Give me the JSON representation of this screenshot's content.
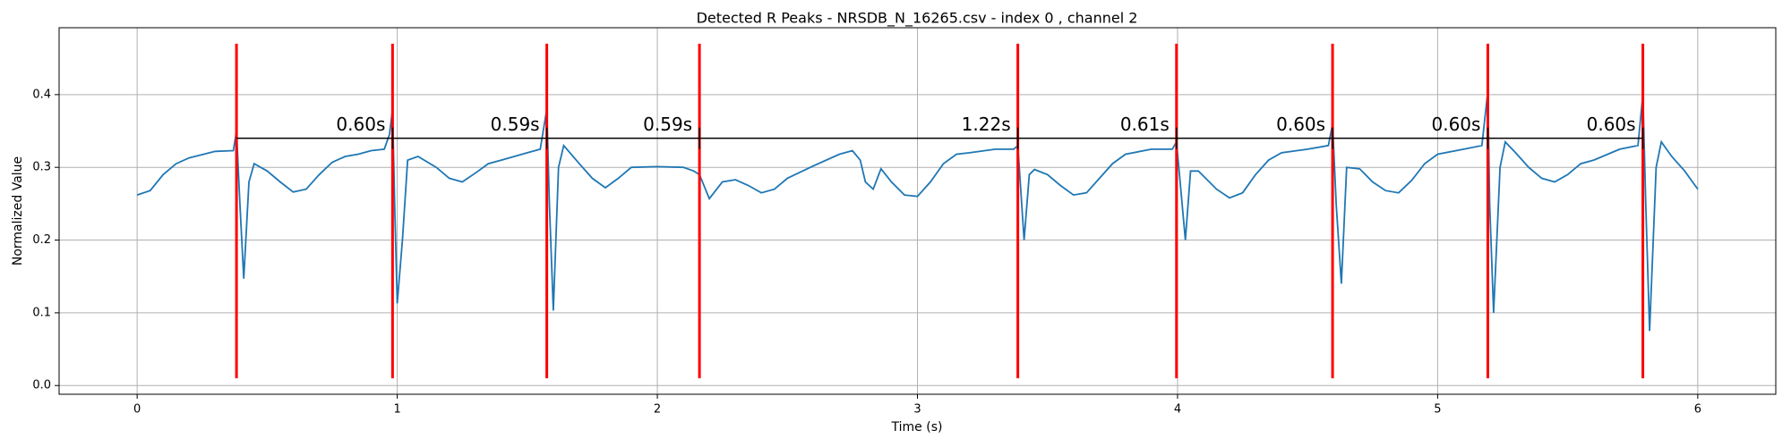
{
  "chart_data": {
    "type": "line",
    "title": "Detected R Peaks - NRSDB_N_16265.csv - index 0 , channel 2",
    "xlabel": "Time (s)",
    "ylabel": "Normalized Value",
    "xlim": [
      -0.3,
      6.3
    ],
    "ylim": [
      -0.012,
      0.492
    ],
    "xticks": [
      0,
      1,
      2,
      3,
      4,
      5,
      6
    ],
    "yticks": [
      {
        "value": 0,
        "label": "0.0"
      },
      0.1,
      0.2,
      0.3,
      0.4
    ],
    "grid": true,
    "color": "#1f77b4",
    "x": [
      0,
      0.05,
      0.1,
      0.15,
      0.2,
      0.3,
      0.37,
      0.382,
      0.395,
      0.41,
      0.43,
      0.45,
      0.5,
      0.55,
      0.6,
      0.65,
      0.7,
      0.75,
      0.8,
      0.85,
      0.9,
      0.95,
      0.97,
      0.982,
      0.99,
      1.0,
      1.02,
      1.04,
      1.08,
      1.15,
      1.2,
      1.25,
      1.3,
      1.35,
      1.4,
      1.5,
      1.55,
      1.575,
      1.585,
      1.6,
      1.62,
      1.64,
      1.7,
      1.75,
      1.8,
      1.85,
      1.9,
      2.0,
      2.1,
      2.14,
      2.162,
      2.2,
      2.25,
      2.3,
      2.35,
      2.4,
      2.45,
      2.5,
      2.6,
      2.7,
      2.75,
      2.78,
      2.8,
      2.83,
      2.86,
      2.9,
      2.95,
      3.0,
      3.05,
      3.1,
      3.15,
      3.2,
      3.3,
      3.37,
      3.386,
      3.41,
      3.43,
      3.45,
      3.5,
      3.55,
      3.6,
      3.65,
      3.7,
      3.75,
      3.8,
      3.9,
      3.98,
      3.996,
      4.03,
      4.05,
      4.08,
      4.15,
      4.2,
      4.25,
      4.3,
      4.35,
      4.4,
      4.5,
      4.58,
      4.596,
      4.61,
      4.63,
      4.65,
      4.7,
      4.75,
      4.8,
      4.85,
      4.9,
      4.95,
      5.0,
      5.1,
      5.17,
      5.193,
      5.2,
      5.215,
      5.24,
      5.26,
      5.3,
      5.35,
      5.4,
      5.45,
      5.5,
      5.55,
      5.6,
      5.7,
      5.77,
      5.789,
      5.8,
      5.815,
      5.84,
      5.86,
      5.9,
      5.95,
      6.0
    ],
    "values": [
      0.262,
      0.268,
      0.29,
      0.305,
      0.313,
      0.322,
      0.323,
      0.35,
      0.25,
      0.147,
      0.28,
      0.305,
      0.295,
      0.28,
      0.266,
      0.27,
      0.29,
      0.307,
      0.315,
      0.318,
      0.323,
      0.325,
      0.345,
      0.38,
      0.25,
      0.113,
      0.2,
      0.31,
      0.315,
      0.3,
      0.285,
      0.28,
      0.292,
      0.305,
      0.31,
      0.32,
      0.325,
      0.38,
      0.25,
      0.103,
      0.3,
      0.33,
      0.305,
      0.285,
      0.272,
      0.285,
      0.3,
      0.301,
      0.3,
      0.295,
      0.29,
      0.257,
      0.28,
      0.283,
      0.275,
      0.265,
      0.27,
      0.285,
      0.302,
      0.318,
      0.323,
      0.31,
      0.28,
      0.27,
      0.298,
      0.28,
      0.262,
      0.26,
      0.28,
      0.305,
      0.318,
      0.32,
      0.325,
      0.325,
      0.33,
      0.2,
      0.29,
      0.297,
      0.29,
      0.275,
      0.262,
      0.265,
      0.285,
      0.305,
      0.318,
      0.325,
      0.325,
      0.335,
      0.2,
      0.295,
      0.295,
      0.27,
      0.258,
      0.265,
      0.29,
      0.31,
      0.32,
      0.325,
      0.33,
      0.36,
      0.25,
      0.14,
      0.3,
      0.298,
      0.28,
      0.268,
      0.265,
      0.282,
      0.305,
      0.318,
      0.325,
      0.33,
      0.405,
      0.25,
      0.1,
      0.3,
      0.335,
      0.32,
      0.3,
      0.285,
      0.28,
      0.29,
      0.305,
      0.31,
      0.325,
      0.33,
      0.4,
      0.25,
      0.075,
      0.3,
      0.335,
      0.315,
      0.295,
      0.27
    ],
    "peaks": {
      "x": [
        0.382,
        0.982,
        1.575,
        2.162,
        3.386,
        3.996,
        4.596,
        5.193,
        5.789
      ],
      "range": [
        0.01,
        0.47
      ],
      "color": "red"
    },
    "intervals": {
      "values": [
        0.6,
        0.59,
        0.59,
        1.22,
        0.61,
        0.6,
        0.6,
        0.6
      ],
      "value_labels": [
        "0.60s",
        "0.59s",
        "0.59s",
        "1.22s",
        "0.61s",
        "0.60s",
        "0.60s",
        "0.60s"
      ],
      "level": 0.34,
      "color": "black"
    }
  }
}
